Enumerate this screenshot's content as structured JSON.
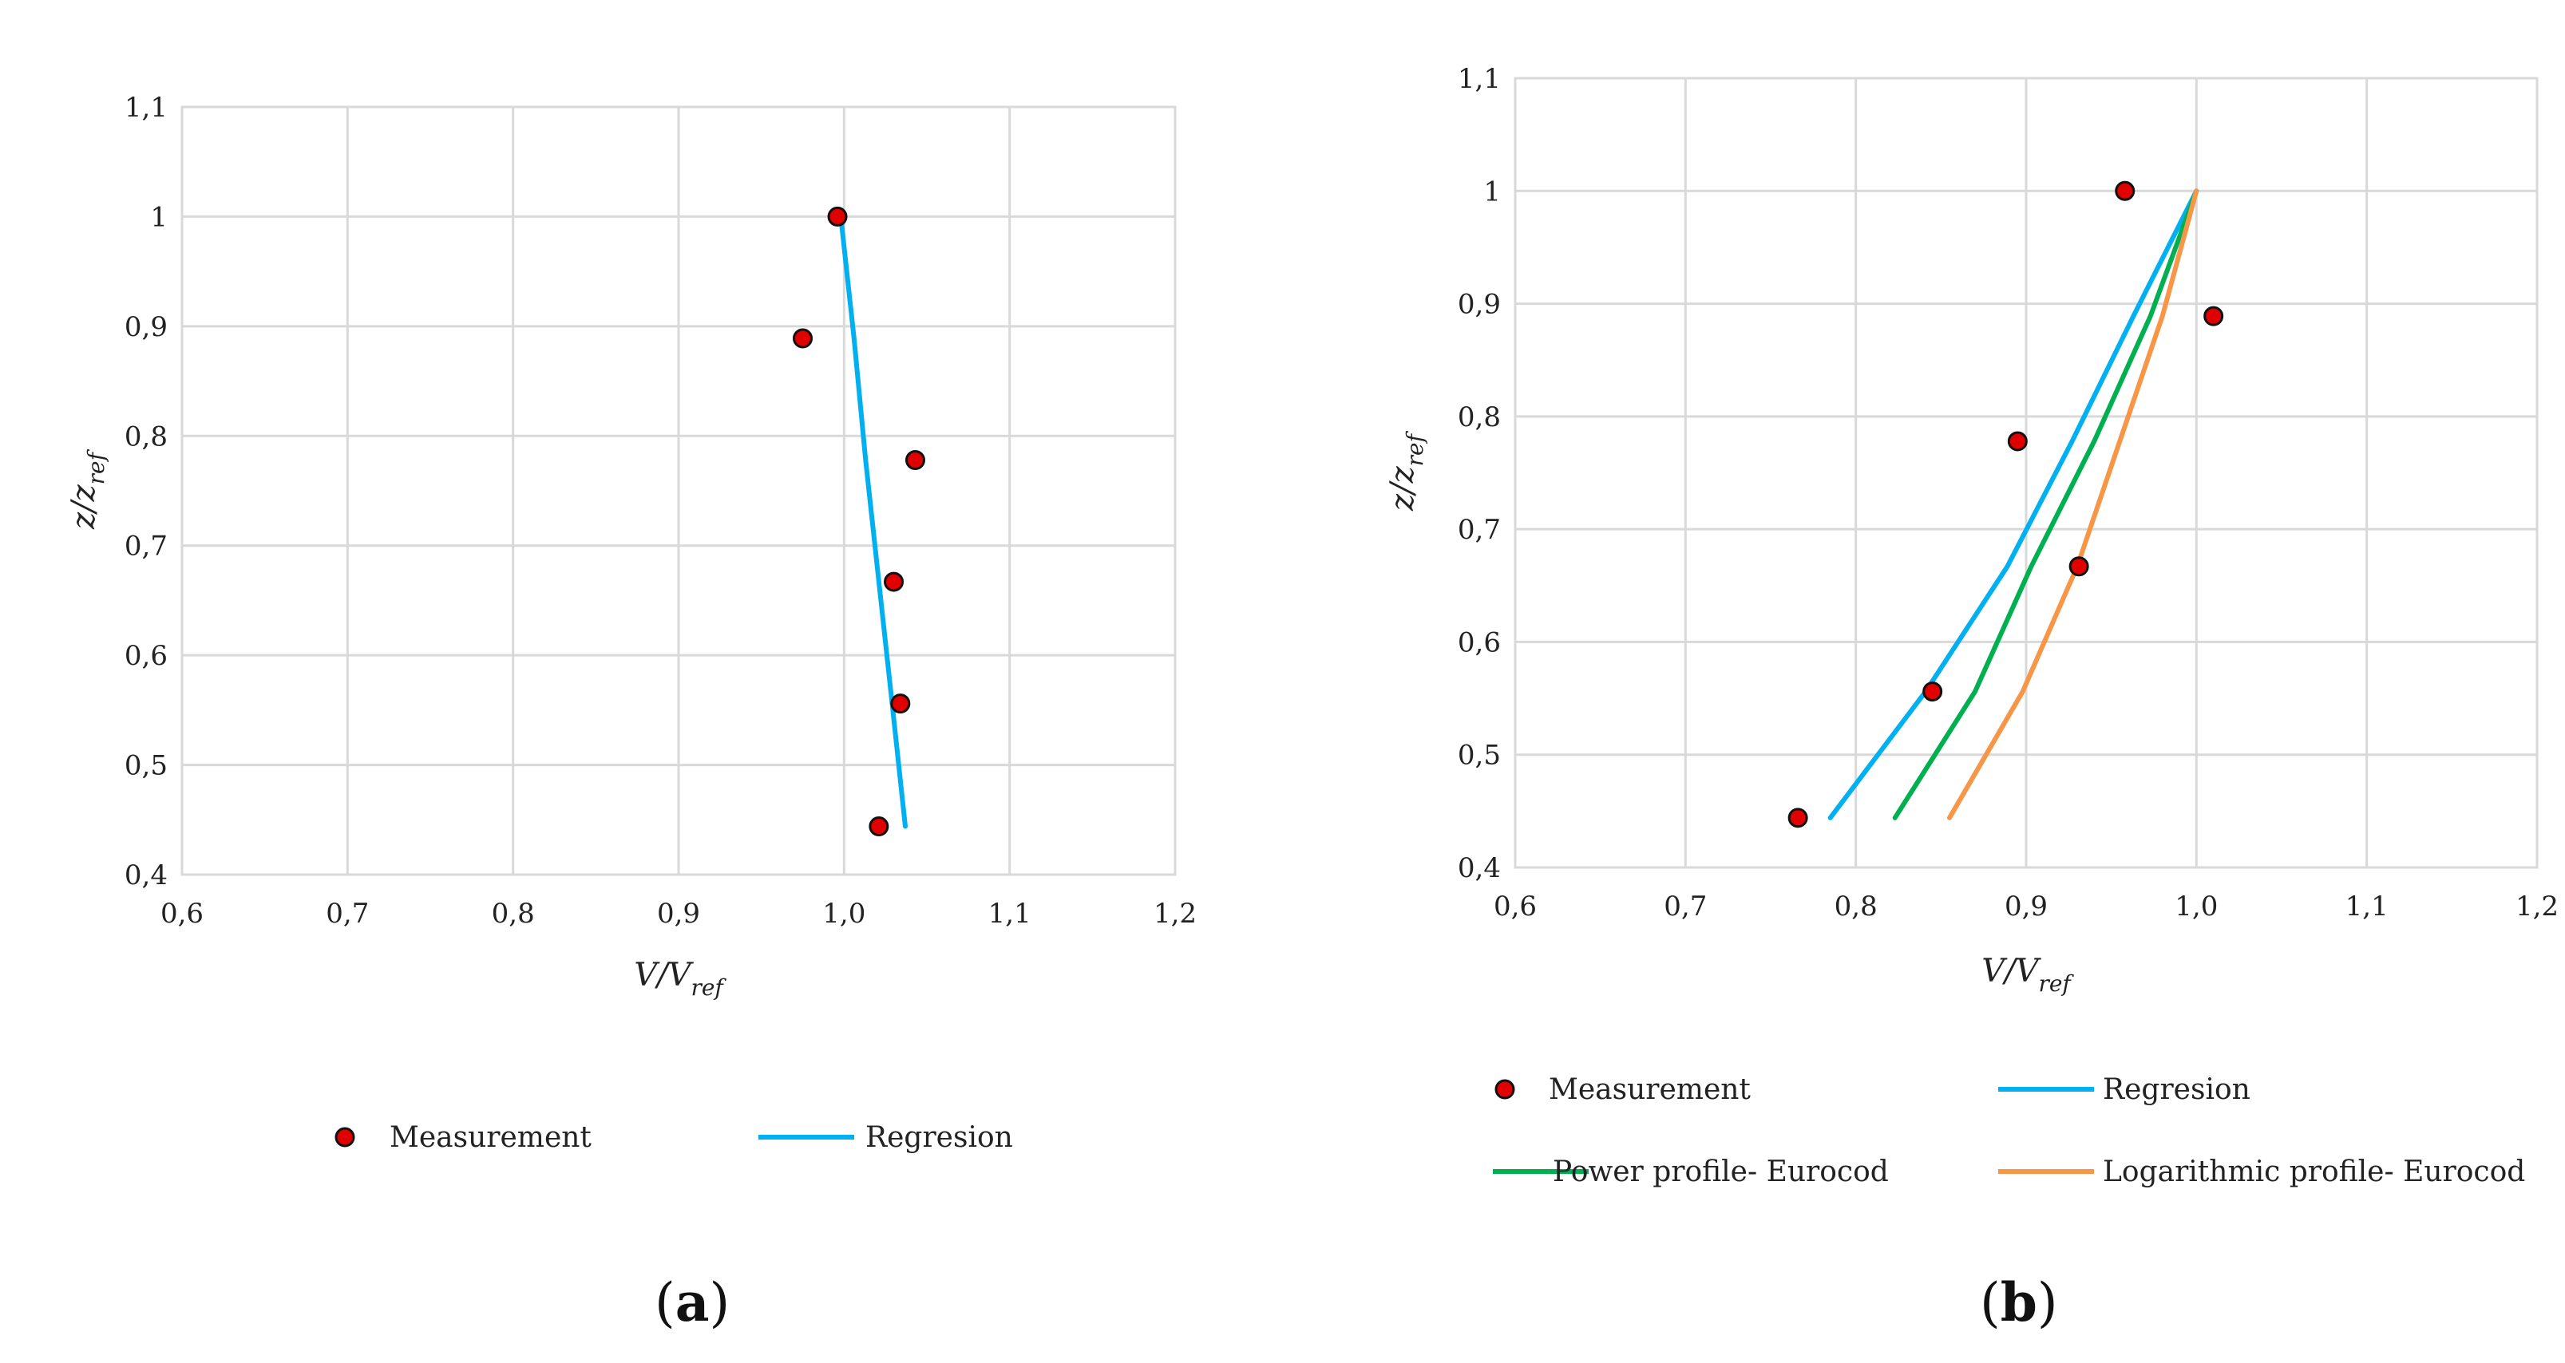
{
  "chart_data": [
    {
      "type": "scatter",
      "panel_label": "(a)",
      "xlabel": {
        "main": "V/V",
        "sub": "ref"
      },
      "ylabel": {
        "main": "z/z",
        "sub": "ref"
      },
      "xlim": [
        0.6,
        1.2
      ],
      "ylim": [
        0.4,
        1.1
      ],
      "xticks": [
        "0,6",
        "0,7",
        "0,8",
        "0,9",
        "1,0",
        "1,1",
        "1,2"
      ],
      "yticks": [
        "0,4",
        "0,5",
        "0,6",
        "0,7",
        "0,8",
        "0,9",
        "1",
        "1,1"
      ],
      "grid": true,
      "legend_position": "bottom",
      "series": [
        {
          "name": "Measurement",
          "kind": "marker",
          "color": "#e00000",
          "points": [
            [
              0.996,
              1.0
            ],
            [
              0.975,
              0.889
            ],
            [
              1.043,
              0.778
            ],
            [
              1.03,
              0.667
            ],
            [
              1.034,
              0.556
            ],
            [
              1.021,
              0.444
            ]
          ]
        },
        {
          "name": "Regresion",
          "kind": "line",
          "color": "#00b0f0",
          "points": [
            [
              0.998,
              1.0
            ],
            [
              1.006,
              0.889
            ],
            [
              1.013,
              0.778
            ],
            [
              1.021,
              0.667
            ],
            [
              1.029,
              0.556
            ],
            [
              1.037,
              0.444
            ]
          ]
        }
      ]
    },
    {
      "type": "scatter",
      "panel_label": "(b)",
      "xlabel": {
        "main": "V/V",
        "sub": "ref"
      },
      "ylabel": {
        "main": "z/z",
        "sub": "ref"
      },
      "xlim": [
        0.6,
        1.2
      ],
      "ylim": [
        0.4,
        1.1
      ],
      "xticks": [
        "0,6",
        "0,7",
        "0,8",
        "0,9",
        "1,0",
        "1,1",
        "1,2"
      ],
      "yticks": [
        "0,4",
        "0,5",
        "0,6",
        "0,7",
        "0,8",
        "0,9",
        "1",
        "1,1"
      ],
      "grid": true,
      "legend_position": "bottom",
      "series": [
        {
          "name": "Measurement",
          "kind": "marker",
          "color": "#e00000",
          "points": [
            [
              0.958,
              1.0
            ],
            [
              1.01,
              0.889
            ],
            [
              0.895,
              0.778
            ],
            [
              0.931,
              0.667
            ],
            [
              0.845,
              0.556
            ],
            [
              0.766,
              0.444
            ]
          ]
        },
        {
          "name": "Regresion",
          "kind": "line",
          "color": "#00b0f0",
          "points": [
            [
              1.0,
              1.0
            ],
            [
              0.963,
              0.889
            ],
            [
              0.927,
              0.778
            ],
            [
              0.889,
              0.667
            ],
            [
              0.841,
              0.556
            ],
            [
              0.785,
              0.444
            ]
          ]
        },
        {
          "name": "Power profile- Eurocod",
          "kind": "line",
          "color": "#00b050",
          "points": [
            [
              1.0,
              1.0
            ],
            [
              0.973,
              0.889
            ],
            [
              0.94,
              0.778
            ],
            [
              0.903,
              0.667
            ],
            [
              0.87,
              0.556
            ],
            [
              0.823,
              0.444
            ]
          ]
        },
        {
          "name": "Logarithmic profile- Eurocod",
          "kind": "line",
          "color": "#f79646",
          "points": [
            [
              1.0,
              1.0
            ],
            [
              0.98,
              0.889
            ],
            [
              0.955,
              0.778
            ],
            [
              0.93,
              0.667
            ],
            [
              0.898,
              0.556
            ],
            [
              0.855,
              0.444
            ]
          ]
        }
      ]
    }
  ]
}
